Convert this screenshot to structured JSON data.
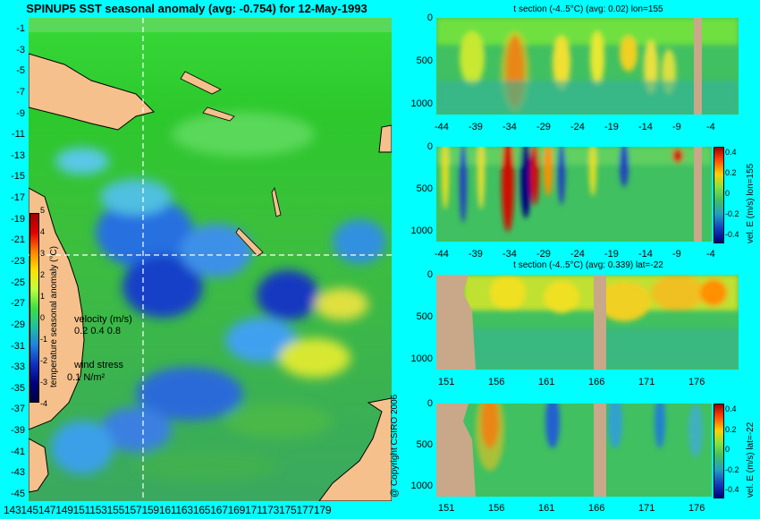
{
  "main_title": "SPINUP5 SST seasonal anomaly (avg: -0.754) for 12-May-1993",
  "copyright": "@ Copyright CSIRO 2006",
  "map": {
    "lat_ticks": [
      "-1",
      "-3",
      "-5",
      "-7",
      "-9",
      "-11",
      "-13",
      "-15",
      "-17",
      "-19",
      "-21",
      "-23",
      "-25",
      "-27",
      "-29",
      "-31",
      "-33",
      "-35",
      "-37",
      "-39",
      "-41",
      "-43",
      "-45"
    ],
    "lon_ticks": [
      "143",
      "145",
      "147",
      "149",
      "151",
      "153",
      "155",
      "157",
      "159",
      "161",
      "163",
      "165",
      "167",
      "169",
      "171",
      "173",
      "175",
      "177",
      "179"
    ],
    "lon_ticks_text": "143145147149151153155157159161163165167169171173175177179",
    "section_lon": 155,
    "section_lat": -22,
    "colorbar_ticks": [
      "5",
      "4",
      "3",
      "2",
      "1",
      "0",
      "-1",
      "-2",
      "-3",
      "-4"
    ],
    "colorbar_label": "temperature seasonal anomaly (°C)",
    "velocity_label": "velocity (m/s)",
    "velocity_scale": "0.2 0.4 0.8",
    "wind_label": "wind stress",
    "wind_scale": "0.1 N/m²",
    "colors": {
      "ocean_mid": "#30c830",
      "land": "#f5c08c",
      "cold": "#1030c0",
      "warm": "#e8e820"
    }
  },
  "panels": [
    {
      "title": "t section (-4..5°C) (avg: 0.02) lon=155",
      "x_ticks": [
        "-44",
        "-39",
        "-34",
        "-29",
        "-24",
        "-19",
        "-14",
        "-9",
        "-4"
      ],
      "y_ticks": [
        "0",
        "500",
        "1000"
      ]
    },
    {
      "title": "",
      "x_ticks": [
        "-44",
        "-39",
        "-34",
        "-29",
        "-24",
        "-19",
        "-14",
        "-9",
        "-4"
      ],
      "y_ticks": [
        "0",
        "500",
        "1000"
      ],
      "colorbar_ticks": [
        "0.4",
        "0.2",
        "0",
        "-0.2",
        "-0.4"
      ],
      "colorbar_label": "vel. E (m/s) lon=155"
    },
    {
      "title": "t section (-4..5°C) (avg: 0.339) lat=-22",
      "x_ticks": [
        "151",
        "156",
        "161",
        "166",
        "171",
        "176"
      ],
      "y_ticks": [
        "0",
        "500",
        "1000"
      ]
    },
    {
      "title": "",
      "x_ticks": [
        "151",
        "156",
        "161",
        "166",
        "171",
        "176"
      ],
      "y_ticks": [
        "0",
        "500",
        "1000"
      ],
      "colorbar_ticks": [
        "0.4",
        "0.2",
        "0",
        "-0.2",
        "-0.4"
      ],
      "colorbar_label": "vel. E (m/s) lat=-22"
    }
  ]
}
